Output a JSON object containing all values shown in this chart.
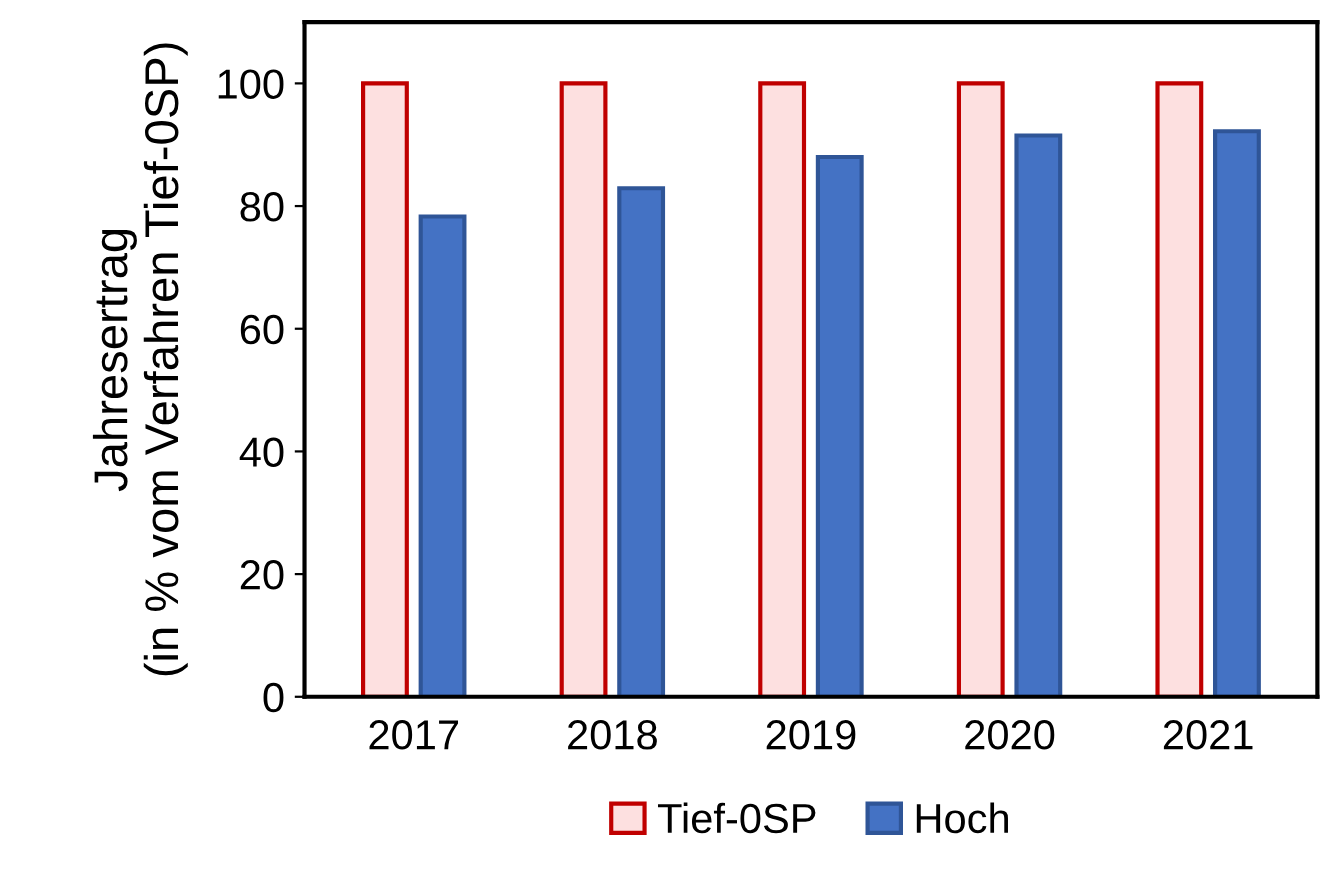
{
  "chart_data": {
    "type": "bar",
    "ylabel": "Jahresertrag\n(in % vom Verfahren Tief-0SP)",
    "categories": [
      "2017",
      "2018",
      "2019",
      "2020",
      "2021"
    ],
    "series": [
      {
        "name": "Tief-0SP",
        "color": "#fde0e0",
        "values": [
          100,
          100,
          100,
          100,
          100
        ]
      },
      {
        "name": "Hoch",
        "color": "#4472c4",
        "values": [
          78.3,
          82.9,
          88.0,
          91.5,
          92.2
        ]
      }
    ],
    "ylim": [
      0,
      110
    ],
    "yticks": [
      0,
      20,
      40,
      60,
      80,
      100
    ],
    "grid": false,
    "legend": "bottom"
  }
}
